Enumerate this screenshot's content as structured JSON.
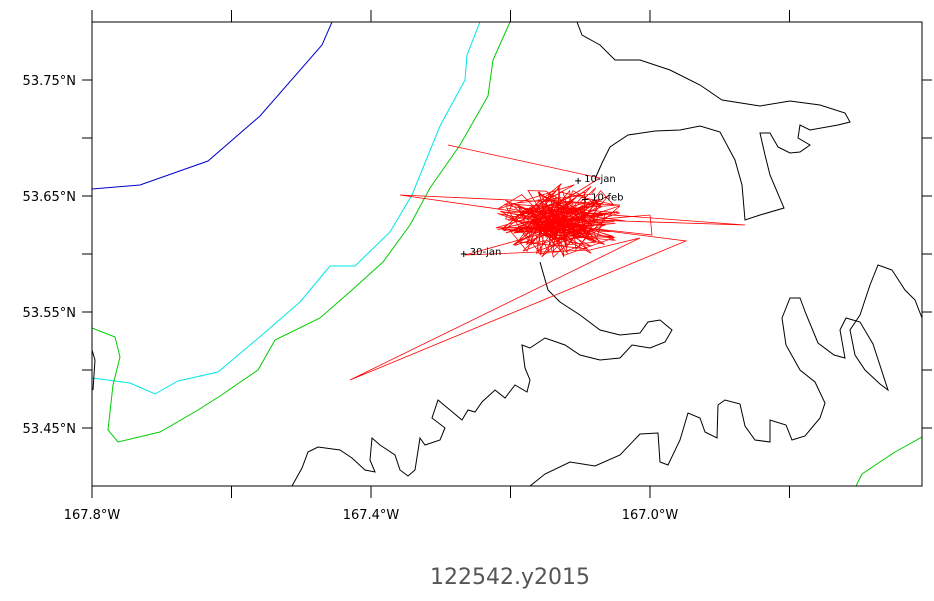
{
  "chart_data": {
    "type": "map",
    "title": "122542.y2015",
    "xlim": [
      -167.8,
      -166.61
    ],
    "ylim": [
      53.4,
      53.8
    ],
    "xticks": [
      {
        "value": -167.8,
        "label": "167.8°W"
      },
      {
        "value": -167.4,
        "label": "167.4°W"
      },
      {
        "value": -167.0,
        "label": "167.0°W"
      }
    ],
    "xminorticks": [
      -167.6,
      -167.2,
      -166.8
    ],
    "yticks": [
      {
        "value": 53.45,
        "label": "53.45°N"
      },
      {
        "value": 53.55,
        "label": "53.55°N"
      },
      {
        "value": 53.65,
        "label": "53.65°N"
      },
      {
        "value": 53.75,
        "label": "53.75°N"
      }
    ],
    "yminorticks": [
      53.5,
      53.6,
      53.7
    ],
    "track_color": "#ff0000",
    "annotations": [
      {
        "text": "10-jan",
        "lon": -167.103,
        "lat": 53.663
      },
      {
        "text": "10-feb",
        "lon": -167.093,
        "lat": 53.647
      },
      {
        "text": "30-jan",
        "lon": -167.267,
        "lat": 53.6
      }
    ]
  }
}
